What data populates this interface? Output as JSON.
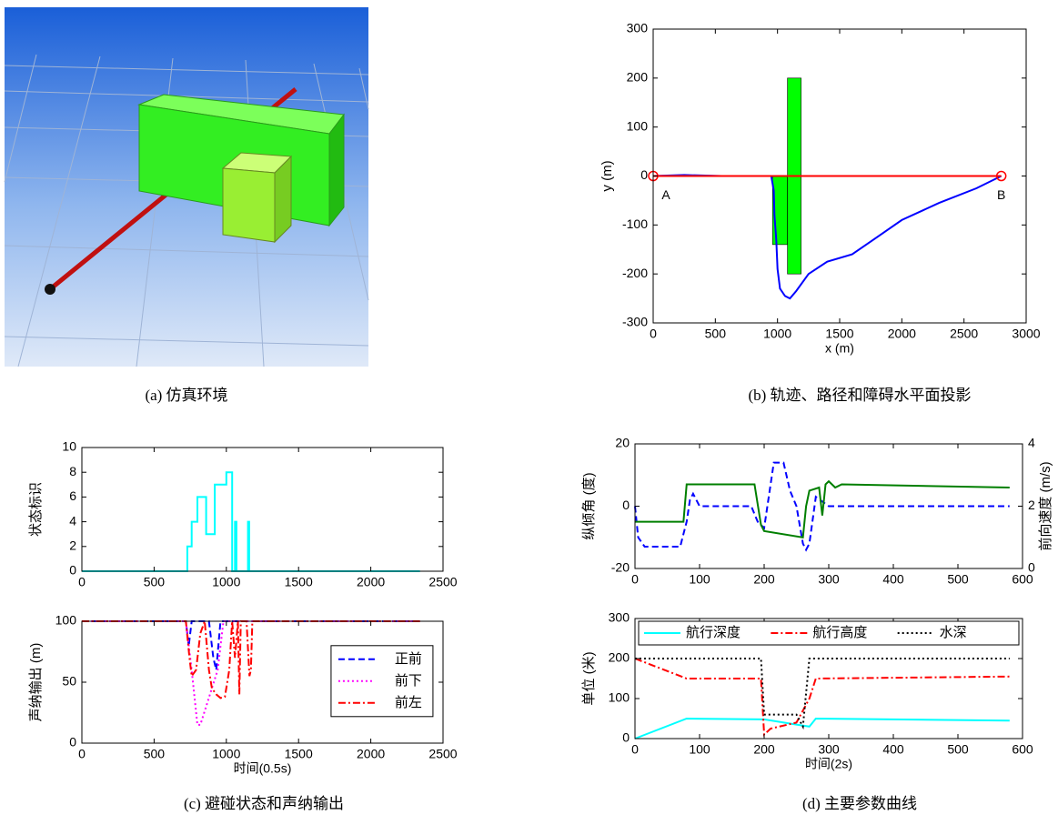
{
  "captions": [
    "(a)  仿真环境",
    "(b)  轨迹、路径和障碍水平面投影",
    "(c)  避碰状态和声纳输出",
    "(d)  主要参数曲线"
  ],
  "chart_data": [
    {
      "type": "line",
      "xlabel": "x (m)",
      "ylabel": "y (m)",
      "xlim": [
        0,
        3000
      ],
      "xticks": [
        0,
        500,
        1000,
        1500,
        2000,
        2500,
        3000
      ],
      "ylim": [
        -300,
        300
      ],
      "yticks": [
        -300,
        -200,
        -100,
        0,
        100,
        200,
        300
      ],
      "annotations": [
        "A",
        "B"
      ],
      "rects": [
        {
          "color": "#00ff00",
          "x0": 960,
          "x1": 1080,
          "y0": -140,
          "y1": 0
        },
        {
          "color": "#00ff00",
          "x0": 1080,
          "x1": 1190,
          "y0": -200,
          "y1": 200
        }
      ],
      "series": [
        {
          "color": "#0000ff",
          "style": "solid",
          "x": [
            0,
            250,
            550,
            950,
            970,
            975,
            990,
            1000,
            1020,
            1060,
            1100,
            1150,
            1250,
            1400,
            1600,
            1800,
            2000,
            2300,
            2600,
            2800
          ],
          "values": [
            0,
            2,
            0,
            0,
            -30,
            -80,
            -130,
            -190,
            -230,
            -245,
            -250,
            -235,
            -200,
            -175,
            -160,
            -125,
            -90,
            -55,
            -25,
            0
          ]
        },
        {
          "color": "#ff0000",
          "style": "solid",
          "x": [
            0,
            2800
          ],
          "values": [
            0,
            0
          ]
        }
      ]
    },
    {
      "type": "line",
      "ylabel": "状态标识",
      "xlim": [
        0,
        2500
      ],
      "xticks": [
        0,
        500,
        1000,
        1500,
        2000,
        2500
      ],
      "ylim": [
        0,
        10
      ],
      "yticks": [
        0,
        2,
        4,
        6,
        8,
        10
      ],
      "series": [
        {
          "color": "#00ffff",
          "style": "solid",
          "x": [
            0,
            730,
            730,
            760,
            760,
            800,
            800,
            860,
            860,
            920,
            920,
            1000,
            1000,
            1040,
            1040,
            1060,
            1060,
            1070,
            1070,
            1150,
            1150,
            1158,
            1158,
            2340
          ],
          "values": [
            0,
            0,
            2,
            2,
            4,
            4,
            6,
            6,
            3,
            3,
            7,
            7,
            8,
            8,
            0,
            0,
            4,
            4,
            0,
            0,
            4,
            4,
            0,
            0
          ]
        }
      ]
    },
    {
      "type": "line",
      "xlabel": "时间(0.5s)",
      "ylabel": "声纳输出 (m)",
      "legend": "right",
      "xlim": [
        0,
        2500
      ],
      "xticks": [
        0,
        500,
        1000,
        1500,
        2000,
        2500
      ],
      "ylim": [
        0,
        100
      ],
      "yticks": [
        0,
        50,
        100
      ],
      "series": [
        {
          "name": "正前",
          "color": "#0000ff",
          "style": "dashed",
          "x": [
            0,
            720,
            740,
            760,
            800,
            880,
            910,
            930,
            960,
            2340
          ],
          "values": [
            100,
            100,
            80,
            100,
            100,
            100,
            70,
            60,
            100,
            100
          ]
        },
        {
          "name": "前下",
          "color": "#ff00ff",
          "style": "dotted",
          "x": [
            0,
            720,
            760,
            800,
            820,
            860,
            900,
            940,
            980,
            2340
          ],
          "values": [
            100,
            100,
            60,
            15,
            15,
            30,
            45,
            60,
            100,
            100
          ]
        },
        {
          "name": "前左",
          "color": "#ff0000",
          "style": "dashdot",
          "x": [
            0,
            720,
            745,
            760,
            790,
            820,
            850,
            880,
            900,
            930,
            960,
            990,
            1020,
            1040,
            1060,
            1080,
            1090,
            1100,
            1140,
            1160,
            1170,
            1180,
            2340
          ],
          "values": [
            100,
            100,
            70,
            55,
            60,
            90,
            100,
            60,
            45,
            40,
            37,
            38,
            60,
            100,
            70,
            100,
            40,
            100,
            100,
            55,
            60,
            100,
            100
          ]
        }
      ]
    },
    {
      "type": "line",
      "ylabel": "纵倾角 (度)",
      "y2label": "前向速度 (m/s)",
      "xlim": [
        0,
        600
      ],
      "xticks": [
        0,
        100,
        200,
        300,
        400,
        500,
        600
      ],
      "ylim": [
        -20,
        20
      ],
      "yticks": [
        -20,
        0,
        20
      ],
      "y2lim": [
        0,
        4
      ],
      "y2ticks": [
        0,
        2,
        4
      ],
      "series": [
        {
          "color": "#0000ff",
          "style": "dashed",
          "x": [
            0,
            5,
            15,
            20,
            70,
            80,
            85,
            90,
            100,
            110,
            180,
            190,
            200,
            215,
            230,
            240,
            250,
            260,
            265,
            270,
            280,
            300,
            350,
            580
          ],
          "values": [
            0,
            -10,
            -13,
            -13,
            -13,
            -5,
            2,
            4,
            0,
            0,
            0,
            -5,
            -7,
            14,
            14,
            5,
            0,
            -12,
            -14,
            -12,
            3,
            0,
            0,
            0
          ]
        },
        {
          "color": "#007f00",
          "style": "solid",
          "axis": "y2",
          "x": [
            0,
            75,
            80,
            185,
            195,
            200,
            260,
            265,
            270,
            285,
            290,
            295,
            300,
            305,
            310,
            320,
            580
          ],
          "values": [
            1.5,
            1.5,
            2.7,
            2.7,
            1.4,
            1.2,
            1.0,
            2.0,
            2.5,
            2.6,
            1.7,
            2.7,
            2.8,
            2.7,
            2.6,
            2.7,
            2.6
          ]
        }
      ]
    },
    {
      "type": "line",
      "xlabel": "时间(2s)",
      "ylabel": "单位 (米)",
      "legend": "top",
      "xlim": [
        0,
        600
      ],
      "xticks": [
        0,
        100,
        200,
        300,
        400,
        500,
        600
      ],
      "ylim": [
        0,
        300
      ],
      "yticks": [
        0,
        100,
        200,
        300
      ],
      "series": [
        {
          "name": "航行深度",
          "color": "#00ffff",
          "style": "solid",
          "x": [
            0,
            80,
            200,
            250,
            270,
            280,
            580
          ],
          "values": [
            0,
            50,
            48,
            35,
            30,
            50,
            45
          ]
        },
        {
          "name": "航行高度",
          "color": "#ff0000",
          "style": "dashdot",
          "x": [
            0,
            80,
            195,
            200,
            210,
            250,
            270,
            280,
            580
          ],
          "values": [
            200,
            150,
            150,
            10,
            25,
            40,
            100,
            150,
            155
          ]
        },
        {
          "name": "水深",
          "color": "#000000",
          "style": "dotted",
          "x": [
            0,
            195,
            200,
            250,
            260,
            270,
            580
          ],
          "values": [
            200,
            200,
            60,
            60,
            30,
            200,
            200
          ]
        }
      ]
    }
  ]
}
